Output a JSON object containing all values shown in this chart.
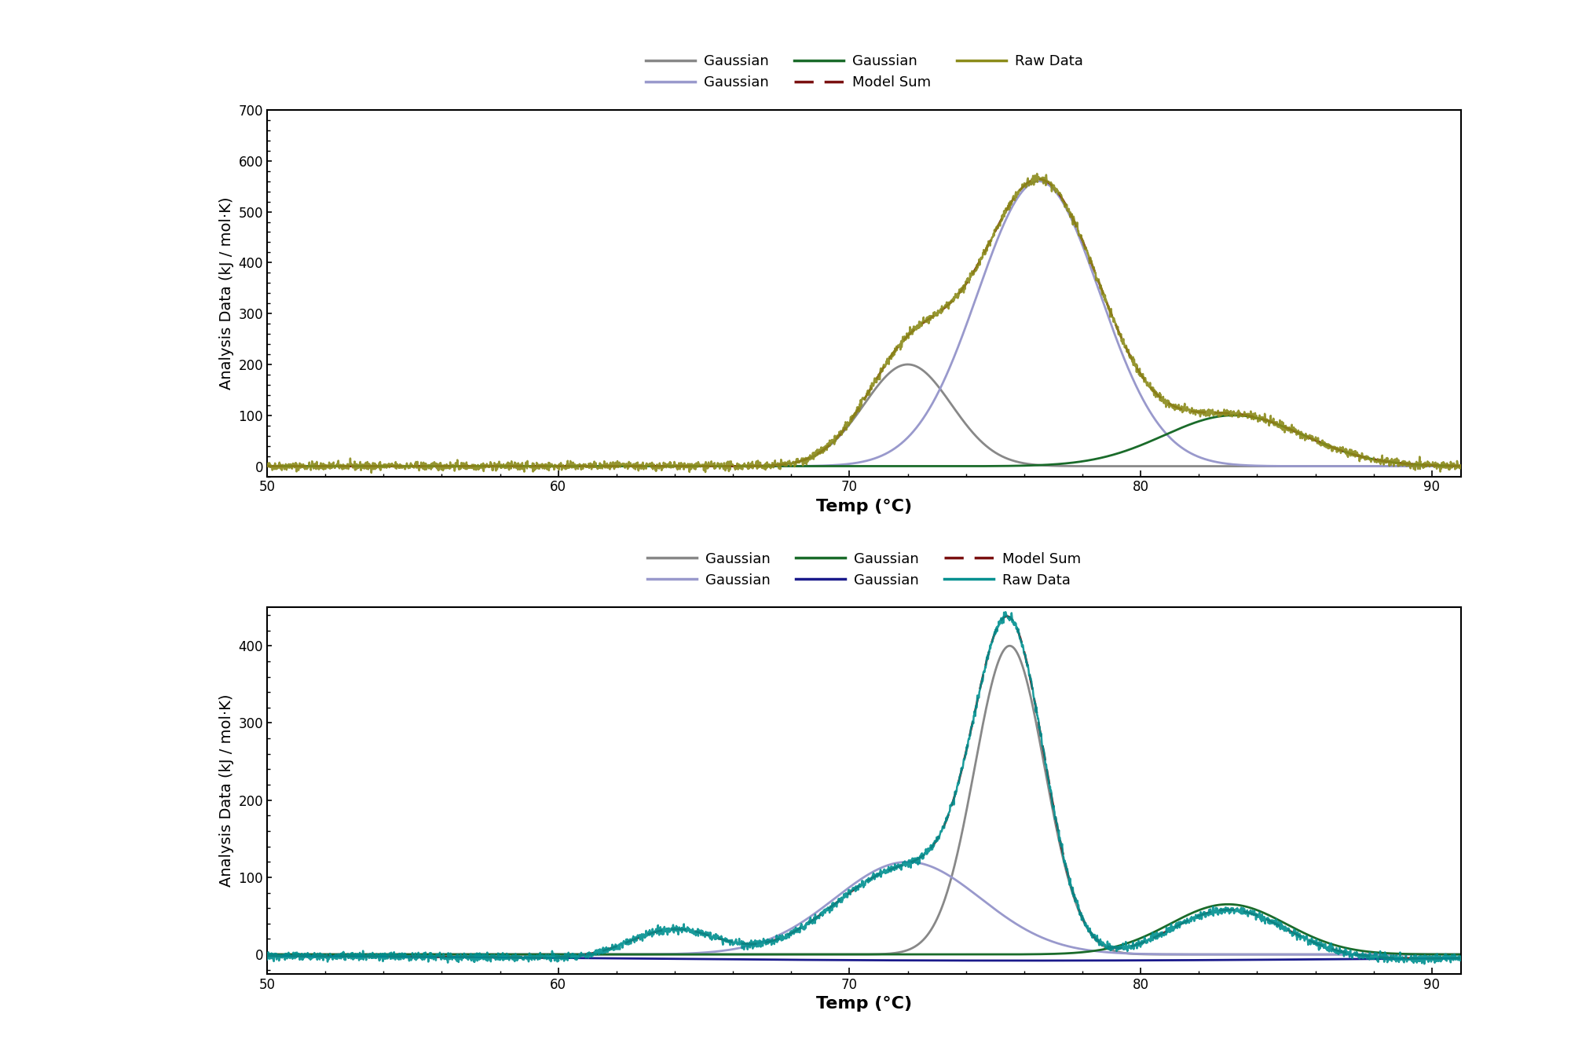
{
  "top_plot": {
    "gaussians": [
      {
        "mu": 72.0,
        "sigma": 1.5,
        "amp": 200,
        "color": "#888888",
        "label": "Gaussian"
      },
      {
        "mu": 76.5,
        "sigma": 2.1,
        "amp": 560,
        "color": "#9999cc",
        "label": "Gaussian"
      },
      {
        "mu": 83.2,
        "sigma": 2.4,
        "amp": 100,
        "color": "#1a6b2a",
        "label": "Gaussian"
      }
    ],
    "raw_data_color": "#8b8b1a",
    "model_sum_color": "#7a1010",
    "ylabel": "Analysis Data (kJ / mol·K)",
    "xlabel": "Temp (°C)",
    "xlim": [
      50,
      91
    ],
    "ylim": [
      -20,
      700
    ],
    "yticks": [
      0,
      100,
      200,
      300,
      400,
      500,
      600,
      700
    ]
  },
  "bottom_plot": {
    "gaussians": [
      {
        "mu": 75.5,
        "sigma": 1.2,
        "amp": 400,
        "color": "#888888",
        "label": "Gaussian"
      },
      {
        "mu": 72.0,
        "sigma": 2.5,
        "amp": 120,
        "color": "#9999cc",
        "label": "Gaussian"
      },
      {
        "mu": 83.0,
        "sigma": 2.0,
        "amp": 65,
        "color": "#1a6b2a",
        "label": "Gaussian"
      },
      {
        "mu": 76.0,
        "sigma": 15.0,
        "amp": -8,
        "color": "#1a1a8b",
        "label": "Gaussian"
      }
    ],
    "raw_data_color": "#009090",
    "model_sum_color": "#7a1010",
    "ylabel": "Analysis Data (kJ / mol·K)",
    "xlabel": "Temp (°C)",
    "xlim": [
      50,
      91
    ],
    "ylim": [
      -25,
      450
    ],
    "yticks": [
      0,
      100,
      200,
      300,
      400
    ]
  },
  "background_color": "#ffffff",
  "font_size": 14,
  "tick_font_size": 12,
  "legend_font_size": 13
}
